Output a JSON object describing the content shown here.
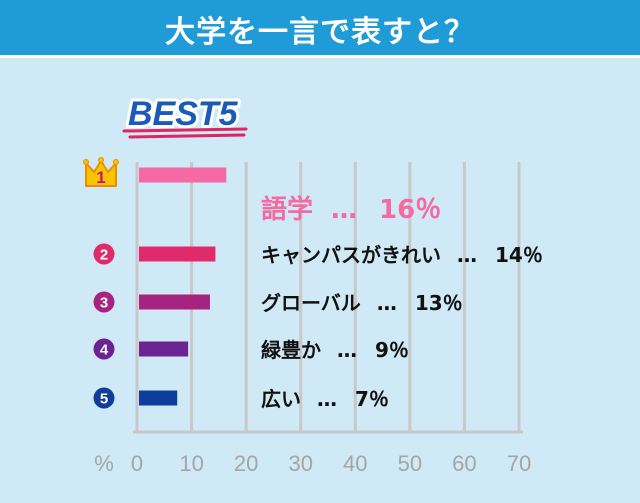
{
  "header": {
    "title": "大学を一言で表すと？"
  },
  "badge": {
    "text": "BEST5"
  },
  "colors": {
    "header_bg": "#1f9bd7",
    "bg": "#cfe9f6",
    "axis": "#c8c8c8",
    "tick_label": "#a5a5a5"
  },
  "chart_data": {
    "type": "bar",
    "orientation": "horizontal",
    "title": "",
    "xlabel": "%",
    "ylabel": "",
    "xlim": [
      0,
      70
    ],
    "x_ticks": [
      0,
      10,
      20,
      30,
      40,
      50,
      60,
      70
    ],
    "grid": true,
    "items": [
      {
        "rank": "1",
        "category": "語学",
        "value": 16,
        "value_label": "16％",
        "color": "#f569a5",
        "text_color": "#f569a5"
      },
      {
        "rank": "2",
        "category": "キャンパスがきれい",
        "value": 14,
        "value_label": "14％",
        "color": "#e02a69",
        "text_color": "#111111"
      },
      {
        "rank": "3",
        "category": "グローバル",
        "value": 13,
        "value_label": "13％",
        "color": "#a6237f",
        "text_color": "#111111"
      },
      {
        "rank": "4",
        "category": "緑豊か",
        "value": 9,
        "value_label": "9％",
        "color": "#6a2390",
        "text_color": "#111111"
      },
      {
        "rank": "5",
        "category": "広い",
        "value": 7,
        "value_label": "7％",
        "color": "#0f3d9b",
        "text_color": "#111111"
      }
    ],
    "separator": "…"
  }
}
